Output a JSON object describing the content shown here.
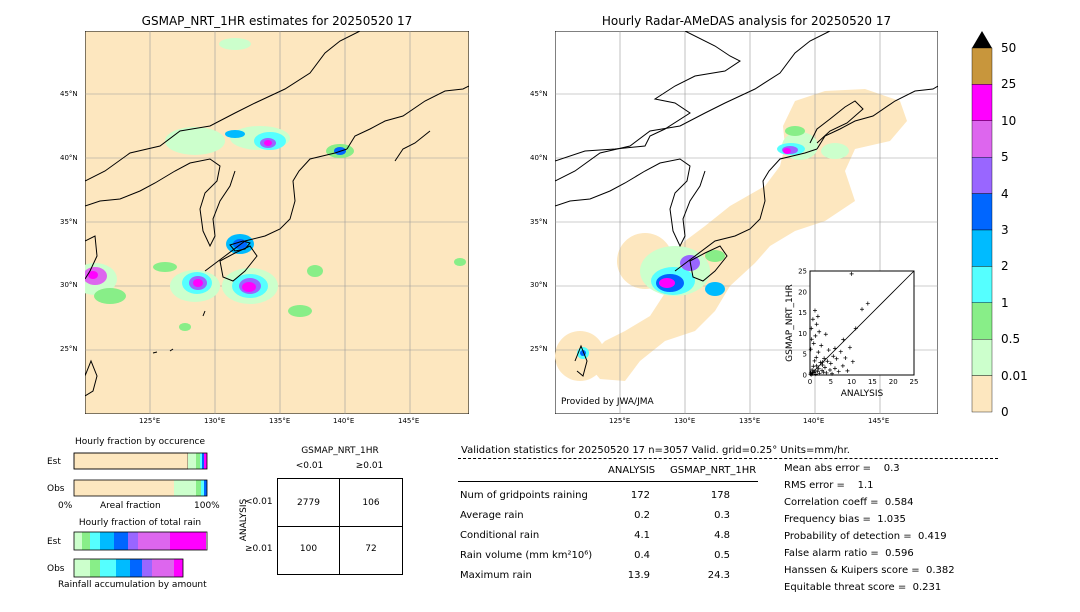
{
  "left_map": {
    "title": "GSMAP_NRT_1HR estimates for 20250520 17",
    "lat_labels": [
      "45°N",
      "40°N",
      "35°N",
      "30°N",
      "25°N"
    ],
    "lon_labels": [
      "125°E",
      "130°E",
      "135°E",
      "140°E",
      "145°E"
    ]
  },
  "right_map": {
    "title": "Hourly Radar-AMeDAS analysis for 20250520 17",
    "lat_labels": [
      "45°N",
      "40°N",
      "35°N",
      "30°N",
      "25°N"
    ],
    "lon_labels": [
      "125°E",
      "130°E",
      "135°E",
      "140°E",
      "145°E"
    ],
    "credit": "Provided by JWA/JMA"
  },
  "colorbar": {
    "labels": [
      "50",
      "25",
      "10",
      "5",
      "4",
      "3",
      "2",
      "1",
      "0.5",
      "0.01",
      "0"
    ],
    "colors": [
      "#c8963c",
      "#ff00ff",
      "#dd66ee",
      "#9966ff",
      "#0066ff",
      "#00bbff",
      "#55ffff",
      "#88ee88",
      "#ccffcc",
      "#fde7bf"
    ],
    "over_color": "#000000"
  },
  "fraction_occurrence": {
    "title": "Hourly fraction by occurence",
    "row_labels": [
      "Est",
      "Obs"
    ],
    "axis_left": "0%",
    "axis_mid": "Areal fraction",
    "axis_right": "100%"
  },
  "fraction_total": {
    "title": "Hourly fraction of total rain",
    "row_labels": [
      "Est",
      "Obs"
    ],
    "axis_caption": "Rainfall accumulation by amount"
  },
  "contingency": {
    "title": "GSMAP_NRT_1HR",
    "col_labels": [
      "<0.01",
      "≥0.01"
    ],
    "row_axis_label": "ANALYSIS",
    "row_labels": [
      "<0.01",
      "≥0.01"
    ],
    "cells": [
      [
        "2779",
        "106"
      ],
      [
        "100",
        "72"
      ]
    ]
  },
  "validation": {
    "header": "Validation statistics for 20250520 17  n=3057 Valid. grid=0.25° Units=mm/hr.",
    "col_analysis": "ANALYSIS",
    "col_gsmap": "GSMAP_NRT_1HR",
    "rows": [
      {
        "label": "Num of gridpoints raining",
        "analysis": "172",
        "gsmap": "178"
      },
      {
        "label": "Average rain",
        "analysis": "0.2",
        "gsmap": "0.3"
      },
      {
        "label": "Conditional rain",
        "analysis": "4.1",
        "gsmap": "4.8"
      },
      {
        "label": "Rain volume (mm km²10⁶)",
        "analysis": "0.4",
        "gsmap": "0.5"
      },
      {
        "label": "Maximum rain",
        "analysis": "13.9",
        "gsmap": "24.3"
      }
    ],
    "scores": [
      "Mean abs error =    0.3",
      "RMS error =    1.1",
      "Correlation coeff =  0.584",
      "Frequency bias =  1.035",
      "Probability of detection =  0.419",
      "False alarm ratio =  0.596",
      "Hanssen & Kuipers score =  0.382",
      "Equitable threat score =  0.231"
    ]
  },
  "chart_data": {
    "type": "scatter",
    "xlabel": "ANALYSIS",
    "ylabel": "GSMAP_NRT_1HR",
    "xlim": [
      0,
      25
    ],
    "ylim": [
      0,
      25
    ],
    "ticks": [
      "0",
      "5",
      "10",
      "15",
      "20",
      "25"
    ],
    "points": [
      [
        0.1,
        0.2
      ],
      [
        0.2,
        0.5
      ],
      [
        0.3,
        0.1
      ],
      [
        0.5,
        1.2
      ],
      [
        0.6,
        0.3
      ],
      [
        0.8,
        2.1
      ],
      [
        1.0,
        0.6
      ],
      [
        1.1,
        3.4
      ],
      [
        1.2,
        1.0
      ],
      [
        1.4,
        0.2
      ],
      [
        1.5,
        4.2
      ],
      [
        1.6,
        2.2
      ],
      [
        1.8,
        0.9
      ],
      [
        2.0,
        5.5
      ],
      [
        2.1,
        1.5
      ],
      [
        2.3,
        0.4
      ],
      [
        2.5,
        3.0
      ],
      [
        2.7,
        7.1
      ],
      [
        2.9,
        1.1
      ],
      [
        3.0,
        2.4
      ],
      [
        3.2,
        0.7
      ],
      [
        3.4,
        4.0
      ],
      [
        3.6,
        1.8
      ],
      [
        3.8,
        9.8
      ],
      [
        4.0,
        0.5
      ],
      [
        4.2,
        3.3
      ],
      [
        4.5,
        6.0
      ],
      [
        4.8,
        1.2
      ],
      [
        5.0,
        2.8
      ],
      [
        5.3,
        0.3
      ],
      [
        5.6,
        4.5
      ],
      [
        6.0,
        1.6
      ],
      [
        6.4,
        3.9
      ],
      [
        6.9,
        0.8
      ],
      [
        7.4,
        5.6
      ],
      [
        7.9,
        2.2
      ],
      [
        8.5,
        4.1
      ],
      [
        9.0,
        1.0
      ],
      [
        9.6,
        6.6
      ],
      [
        10.3,
        3.2
      ],
      [
        0.3,
        11.2
      ],
      [
        0.7,
        13.4
      ],
      [
        1.2,
        15.5
      ],
      [
        1.6,
        12.2
      ],
      [
        2.2,
        10.4
      ],
      [
        0.4,
        8.6
      ],
      [
        0.9,
        7.6
      ],
      [
        1.3,
        9.4
      ],
      [
        0.2,
        6.2
      ],
      [
        1.9,
        14.1
      ],
      [
        10.0,
        24.3
      ],
      [
        13.9,
        17.2
      ],
      [
        12.5,
        15.8
      ],
      [
        11.0,
        11.2
      ],
      [
        8.0,
        8.5
      ],
      [
        3.0,
        3.1
      ],
      [
        0.6,
        0.6
      ],
      [
        6.0,
        6.4
      ]
    ]
  }
}
